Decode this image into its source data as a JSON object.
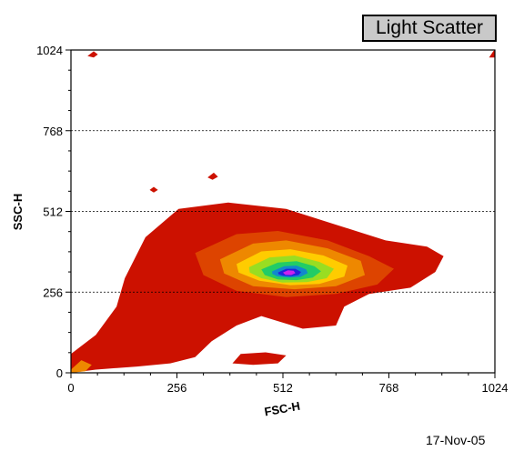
{
  "title": "Light Scatter",
  "date": "17-Nov-05",
  "chart_data": {
    "type": "heatmap",
    "xlabel": "FSC-H",
    "ylabel": "SSC-H",
    "xlim": [
      0,
      1024
    ],
    "ylim": [
      0,
      1024
    ],
    "xticks": [
      0,
      256,
      512,
      768,
      1024
    ],
    "yticks": [
      0,
      256,
      512,
      768,
      1024
    ],
    "gridlines_y": [
      256,
      512,
      768
    ],
    "grid_style": "dashed horizontal",
    "colormap": [
      "#cc1100",
      "#dd4400",
      "#ee8800",
      "#ffcc00",
      "#99dd22",
      "#22cc66",
      "#1188cc",
      "#2222dd",
      "#cc22ee"
    ],
    "density_regions": [
      {
        "level": 0,
        "color": "#cc1100",
        "points": [
          [
            0,
            60
          ],
          [
            60,
            120
          ],
          [
            110,
            210
          ],
          [
            130,
            300
          ],
          [
            180,
            430
          ],
          [
            260,
            520
          ],
          [
            380,
            540
          ],
          [
            520,
            520
          ],
          [
            640,
            470
          ],
          [
            760,
            420
          ],
          [
            860,
            400
          ],
          [
            900,
            370
          ],
          [
            880,
            320
          ],
          [
            820,
            270
          ],
          [
            720,
            250
          ],
          [
            660,
            210
          ],
          [
            640,
            150
          ],
          [
            560,
            140
          ],
          [
            460,
            180
          ],
          [
            400,
            150
          ],
          [
            340,
            100
          ],
          [
            300,
            50
          ],
          [
            240,
            30
          ],
          [
            160,
            20
          ],
          [
            60,
            10
          ],
          [
            0,
            0
          ]
        ]
      },
      {
        "level": 1,
        "color": "#dd4400",
        "points": [
          [
            300,
            380
          ],
          [
            400,
            440
          ],
          [
            500,
            450
          ],
          [
            620,
            420
          ],
          [
            720,
            370
          ],
          [
            780,
            330
          ],
          [
            740,
            280
          ],
          [
            640,
            250
          ],
          [
            520,
            240
          ],
          [
            400,
            260
          ],
          [
            320,
            310
          ]
        ]
      },
      {
        "level": 2,
        "color": "#ee8800",
        "points": [
          [
            360,
            360
          ],
          [
            440,
            410
          ],
          [
            520,
            420
          ],
          [
            620,
            395
          ],
          [
            700,
            355
          ],
          [
            710,
            310
          ],
          [
            640,
            275
          ],
          [
            540,
            265
          ],
          [
            440,
            275
          ],
          [
            370,
            315
          ]
        ]
      },
      {
        "level": 3,
        "color": "#ffcc00",
        "points": [
          [
            400,
            345
          ],
          [
            460,
            385
          ],
          [
            530,
            392
          ],
          [
            610,
            372
          ],
          [
            668,
            340
          ],
          [
            660,
            305
          ],
          [
            600,
            282
          ],
          [
            530,
            278
          ],
          [
            455,
            292
          ],
          [
            405,
            318
          ]
        ]
      },
      {
        "level": 4,
        "color": "#99dd22",
        "points": [
          [
            430,
            335
          ],
          [
            480,
            366
          ],
          [
            540,
            372
          ],
          [
            600,
            352
          ],
          [
            635,
            330
          ],
          [
            618,
            300
          ],
          [
            570,
            288
          ],
          [
            510,
            286
          ],
          [
            460,
            300
          ],
          [
            432,
            318
          ]
        ]
      },
      {
        "level": 5,
        "color": "#22cc66",
        "points": [
          [
            460,
            328
          ],
          [
            500,
            350
          ],
          [
            545,
            354
          ],
          [
            588,
            338
          ],
          [
            604,
            322
          ],
          [
            584,
            302
          ],
          [
            545,
            294
          ],
          [
            500,
            296
          ],
          [
            468,
            310
          ]
        ]
      },
      {
        "level": 6,
        "color": "#1188cc",
        "points": [
          [
            486,
            322
          ],
          [
            515,
            338
          ],
          [
            545,
            340
          ],
          [
            568,
            328
          ],
          [
            572,
            316
          ],
          [
            554,
            304
          ],
          [
            526,
            302
          ],
          [
            498,
            306
          ],
          [
            486,
            314
          ]
        ]
      },
      {
        "level": 7,
        "color": "#2222dd",
        "points": [
          [
            500,
            318
          ],
          [
            520,
            330
          ],
          [
            542,
            330
          ],
          [
            556,
            320
          ],
          [
            550,
            310
          ],
          [
            532,
            306
          ],
          [
            512,
            308
          ],
          [
            502,
            312
          ]
        ]
      },
      {
        "level": 8,
        "color": "#cc22ee",
        "points": [
          [
            512,
            318
          ],
          [
            524,
            325
          ],
          [
            538,
            324
          ],
          [
            542,
            316
          ],
          [
            532,
            310
          ],
          [
            518,
            311
          ]
        ]
      }
    ],
    "outlier_regions": [
      {
        "color": "#cc1100",
        "points": [
          [
            390,
            30
          ],
          [
            410,
            60
          ],
          [
            470,
            65
          ],
          [
            520,
            55
          ],
          [
            500,
            30
          ],
          [
            440,
            25
          ]
        ]
      },
      {
        "color": "#cc1100",
        "points": [
          [
            1010,
            1000
          ],
          [
            1020,
            1020
          ],
          [
            1024,
            1024
          ],
          [
            1024,
            1000
          ]
        ]
      },
      {
        "color": "#cc1100",
        "points": [
          [
            40,
            1005
          ],
          [
            55,
            1020
          ],
          [
            65,
            1010
          ],
          [
            55,
            1000
          ]
        ]
      },
      {
        "color": "#cc1100",
        "points": [
          [
            330,
            620
          ],
          [
            345,
            635
          ],
          [
            355,
            622
          ],
          [
            342,
            612
          ]
        ]
      },
      {
        "color": "#cc1100",
        "points": [
          [
            190,
            580
          ],
          [
            200,
            590
          ],
          [
            210,
            580
          ],
          [
            200,
            572
          ]
        ]
      }
    ],
    "core_low_left": {
      "color": "#ee8800",
      "points": [
        [
          0,
          10
        ],
        [
          25,
          40
        ],
        [
          50,
          25
        ],
        [
          35,
          5
        ],
        [
          0,
          0
        ]
      ]
    }
  }
}
